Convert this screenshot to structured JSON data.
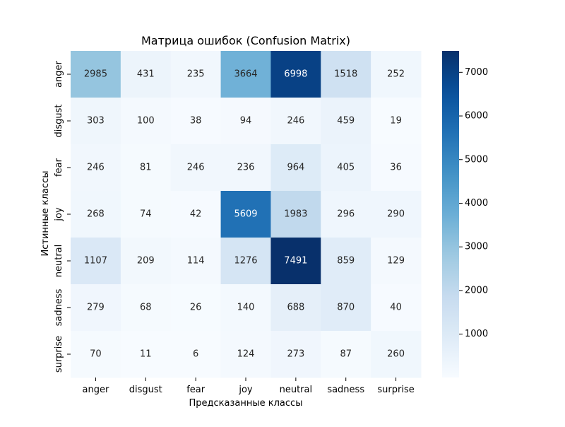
{
  "chart_data": {
    "type": "heatmap",
    "title": "Матрица ошибок (Confusion Matrix)",
    "xlabel": "Предсказанные классы",
    "ylabel": "Истинные классы",
    "x_categories": [
      "anger",
      "disgust",
      "fear",
      "joy",
      "neutral",
      "sadness",
      "surprise"
    ],
    "y_categories": [
      "anger",
      "disgust",
      "fear",
      "joy",
      "neutral",
      "sadness",
      "surprise"
    ],
    "values": [
      [
        2985,
        431,
        235,
        3664,
        6998,
        1518,
        252
      ],
      [
        303,
        100,
        38,
        94,
        246,
        459,
        19
      ],
      [
        246,
        81,
        246,
        236,
        964,
        405,
        36
      ],
      [
        268,
        74,
        42,
        5609,
        1983,
        296,
        290
      ],
      [
        1107,
        209,
        114,
        1276,
        7491,
        859,
        129
      ],
      [
        279,
        68,
        26,
        140,
        688,
        870,
        40
      ],
      [
        70,
        11,
        6,
        124,
        273,
        87,
        260
      ]
    ],
    "colormap": "Blues",
    "value_range": [
      6,
      7491
    ],
    "colorbar_ticks": [
      1000,
      2000,
      3000,
      4000,
      5000,
      6000,
      7000
    ],
    "colors": {
      "low": "#f7fbff",
      "high": "#08306b",
      "text_dark": "#262626",
      "text_light": "#ffffff"
    }
  }
}
